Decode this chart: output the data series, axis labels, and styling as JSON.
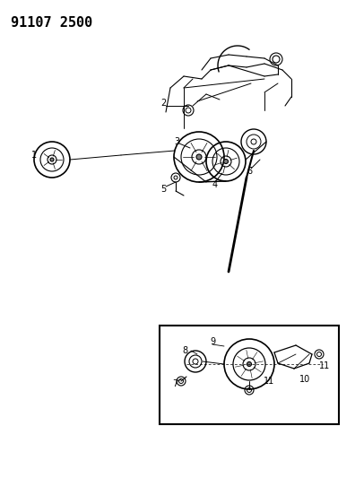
{
  "title": "91107 2500",
  "background_color": "#ffffff",
  "line_color": "#000000",
  "fig_width": 3.96,
  "fig_height": 5.33,
  "dpi": 100
}
